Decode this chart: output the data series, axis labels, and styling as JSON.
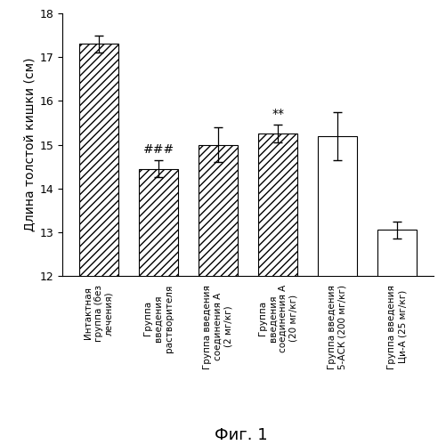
{
  "categories": [
    "Интактная\nгруппа (без\nлечения)",
    "Группа\nвведения\nрастворителя",
    "Группа введения\nсоединения А\n(2 мг/кг)",
    "Группа\nвведения\nсоединения А\n(20 мг/кг)",
    "Группа введения\n5-АСК (200 мг/кг)",
    "Группа введения\nЦи-А (25 мг/кг)"
  ],
  "values": [
    17.3,
    14.45,
    15.0,
    15.25,
    15.2,
    13.05
  ],
  "errors": [
    0.2,
    0.2,
    0.4,
    0.2,
    0.55,
    0.2
  ],
  "hatch_pattern": [
    "////",
    "////",
    "////",
    "////",
    "",
    ""
  ],
  "annotations": [
    "",
    "###",
    "",
    "**",
    "",
    ""
  ],
  "ylabel": "Длина толстой кишки (см)",
  "xlabel": "Фиг. 1",
  "ylim": [
    12,
    18
  ],
  "yticks": [
    12,
    13,
    14,
    15,
    16,
    17,
    18
  ],
  "background_color": "#ffffff",
  "bar_edgecolor": "#000000",
  "annotation_fontsize": 10,
  "ylabel_fontsize": 10,
  "xlabel_fontsize": 13,
  "tick_fontsize": 9,
  "label_fontsize": 7.5
}
